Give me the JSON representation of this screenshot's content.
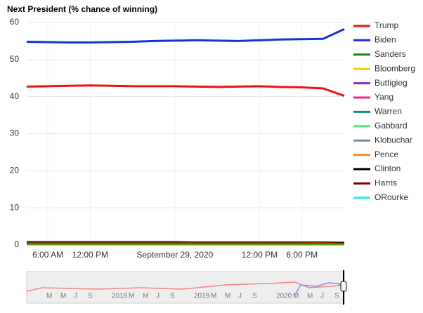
{
  "chart_data": {
    "type": "line",
    "title": "Next President (% chance of winning)",
    "categories": [
      null,
      "6:00 AM",
      null,
      "12:00 PM",
      null,
      null,
      null,
      "September 29, 2020",
      null,
      null,
      null,
      "12:00 PM",
      null,
      "6:00 PM",
      null,
      null
    ],
    "ylim": [
      0,
      60
    ],
    "yticks": [
      0,
      10,
      20,
      30,
      40,
      50,
      60
    ],
    "grid": true,
    "series": [
      {
        "name": "Trump",
        "color": "#ee1111",
        "values": [
          42.7,
          42.8,
          42.9,
          43.0,
          42.9,
          42.8,
          42.8,
          42.8,
          42.7,
          42.6,
          42.7,
          42.8,
          42.6,
          42.5,
          42.2,
          40.2
        ]
      },
      {
        "name": "Biden",
        "color": "#1133dd",
        "values": [
          54.8,
          54.7,
          54.6,
          54.6,
          54.7,
          54.8,
          55.0,
          55.1,
          55.2,
          55.1,
          55.0,
          55.2,
          55.4,
          55.5,
          55.6,
          58.2
        ]
      },
      {
        "name": "Sanders",
        "color": "#118811",
        "values": [
          0.3,
          0.3,
          0.3,
          0.3,
          0.3,
          0.3,
          0.3,
          0.3,
          0.3,
          0.3,
          0.3,
          0.3,
          0.3,
          0.3,
          0.3,
          0.3
        ]
      },
      {
        "name": "Bloomberg",
        "color": "#ffcc00",
        "values": [
          0.1,
          0.1,
          0.1,
          0.1,
          0.1,
          0.1,
          0.1,
          0.1,
          0.1,
          0.1,
          0.1,
          0.1,
          0.1,
          0.1,
          0.1,
          0.1
        ]
      },
      {
        "name": "Buttigieg",
        "color": "#9922cc",
        "values": [
          0.1,
          0.1,
          0.1,
          0.1,
          0.1,
          0.1,
          0.1,
          0.1,
          0.1,
          0.1,
          0.1,
          0.1,
          0.1,
          0.1,
          0.1,
          0.1
        ]
      },
      {
        "name": "Yang",
        "color": "#ee2299",
        "values": [
          0.1,
          0.1,
          0.1,
          0.1,
          0.1,
          0.1,
          0.1,
          0.1,
          0.1,
          0.1,
          0.1,
          0.1,
          0.1,
          0.1,
          0.1,
          0.1
        ]
      },
      {
        "name": "Warren",
        "color": "#118877",
        "values": [
          0.2,
          0.2,
          0.2,
          0.2,
          0.2,
          0.2,
          0.2,
          0.2,
          0.2,
          0.2,
          0.2,
          0.2,
          0.2,
          0.2,
          0.2,
          0.2
        ]
      },
      {
        "name": "Gabbard",
        "color": "#44ee77",
        "values": [
          0.1,
          0.1,
          0.1,
          0.1,
          0.1,
          0.1,
          0.1,
          0.1,
          0.1,
          0.1,
          0.1,
          0.1,
          0.1,
          0.1,
          0.1,
          0.1
        ]
      },
      {
        "name": "Klobuchar",
        "color": "#778899",
        "values": [
          0.1,
          0.1,
          0.1,
          0.1,
          0.1,
          0.1,
          0.1,
          0.1,
          0.1,
          0.1,
          0.1,
          0.1,
          0.1,
          0.1,
          0.1,
          0.1
        ]
      },
      {
        "name": "Pence",
        "color": "#ff8822",
        "values": [
          0.4,
          0.4,
          0.4,
          0.4,
          0.4,
          0.4,
          0.4,
          0.4,
          0.4,
          0.4,
          0.4,
          0.4,
          0.4,
          0.4,
          0.4,
          0.3
        ]
      },
      {
        "name": "Clinton",
        "color": "#000000",
        "values": [
          0.5,
          0.5,
          0.5,
          0.5,
          0.5,
          0.5,
          0.5,
          0.5,
          0.5,
          0.5,
          0.5,
          0.5,
          0.5,
          0.5,
          0.4,
          0.4
        ]
      },
      {
        "name": "Harris",
        "color": "#770000",
        "values": [
          0.8,
          0.8,
          0.8,
          0.8,
          0.8,
          0.8,
          0.8,
          0.8,
          0.7,
          0.7,
          0.7,
          0.7,
          0.7,
          0.7,
          0.7,
          0.6
        ]
      },
      {
        "name": "ORourke",
        "color": "#22eeee",
        "values": [
          0.1,
          0.1,
          0.1,
          0.1,
          0.1,
          0.1,
          0.1,
          0.1,
          0.1,
          0.1,
          0.1,
          0.1,
          0.1,
          0.1,
          0.1,
          0.1
        ]
      }
    ],
    "navigator_labels": [
      "M",
      "M",
      "J",
      "S",
      "2018",
      "M",
      "M",
      "J",
      "S",
      "2019",
      "M",
      "M",
      "J",
      "S",
      "2020",
      "M",
      "M",
      "J",
      "S"
    ]
  }
}
